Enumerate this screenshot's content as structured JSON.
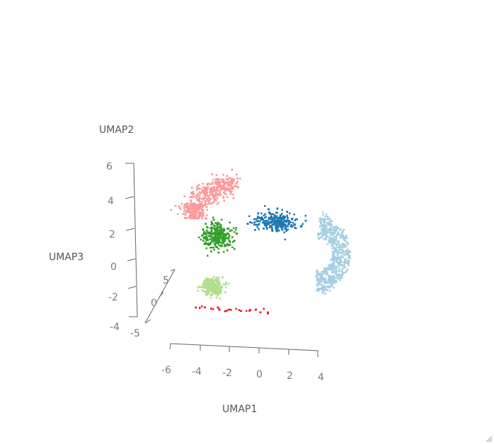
{
  "chart_data": {
    "type": "scatter",
    "dimensions": 3,
    "axes": {
      "x": {
        "label": "UMAP1",
        "ticks": [
          "-6",
          "-4",
          "-2",
          "0",
          "2",
          "4"
        ],
        "range": [
          -6,
          4
        ]
      },
      "y": {
        "label": "UMAP2",
        "ticks": [
          "-4",
          "-2",
          "0",
          "2",
          "4",
          "6"
        ],
        "range": [
          -4,
          6
        ]
      },
      "z": {
        "label": "UMAP3",
        "ticks": [
          "-5",
          "0",
          "5"
        ],
        "range": [
          -5,
          5
        ]
      }
    },
    "grid": false,
    "legend": "none",
    "series": [
      {
        "color": "#fb9a99",
        "center": [
          -3.5,
          4.6
        ],
        "count": 520
      },
      {
        "color": "#33a02c",
        "center": [
          -2.9,
          1.7
        ],
        "count": 300
      },
      {
        "color": "#b2df8a",
        "center": [
          -3.2,
          -1.4
        ],
        "count": 280
      },
      {
        "color": "#1f78b4",
        "center": [
          1.1,
          2.6
        ],
        "count": 260
      },
      {
        "color": "#a6cee3",
        "center": [
          2.8,
          0.6
        ],
        "count": 600
      },
      {
        "color": "#e31a1c",
        "center": [
          -1.5,
          -2.6
        ],
        "count": 25
      }
    ]
  }
}
